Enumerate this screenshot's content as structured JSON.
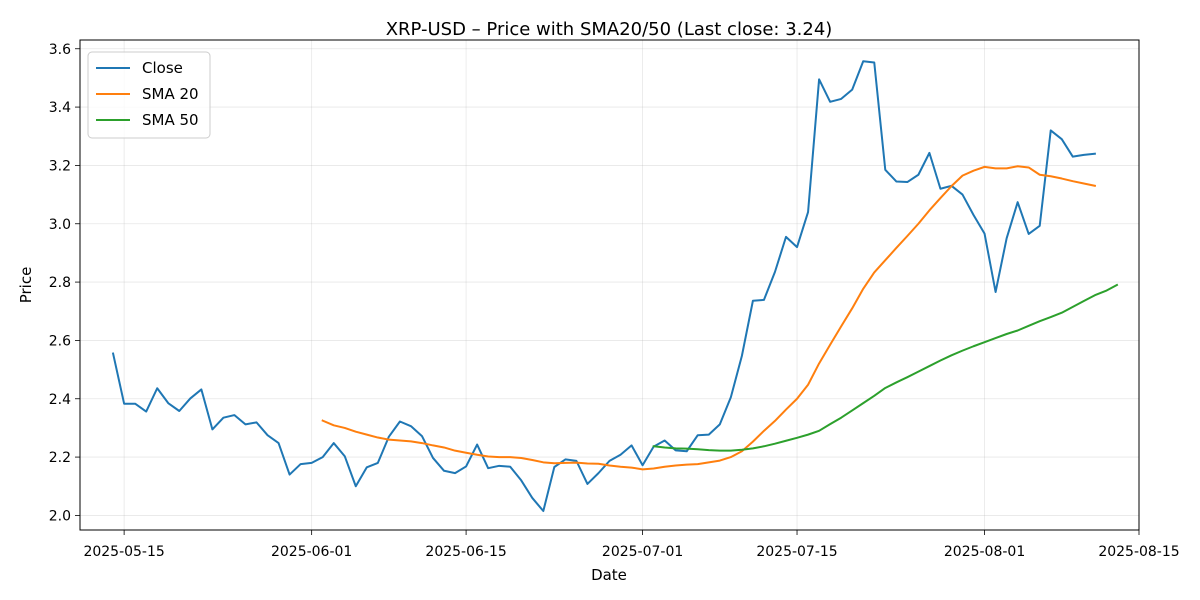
{
  "chart_data": {
    "type": "line",
    "title": "XRP-USD – Price with SMA20/50 (Last close: 3.24)",
    "xlabel": "Date",
    "ylabel": "Price",
    "xlim": [
      "2025-05-11",
      "2025-08-15"
    ],
    "ylim": [
      1.95,
      3.63
    ],
    "x_ticks": [
      "2025-05-15",
      "2025-06-01",
      "2025-06-15",
      "2025-07-01",
      "2025-07-15",
      "2025-08-01",
      "2025-08-15"
    ],
    "y_ticks": [
      "2.0",
      "2.2",
      "2.4",
      "2.6",
      "2.8",
      "3.0",
      "3.2",
      "3.4",
      "3.6"
    ],
    "grid": true,
    "legend_position": "top-left",
    "series": [
      {
        "name": "Close",
        "color": "#1f77b4",
        "start_date": "2025-05-14",
        "values": [
          2.555,
          2.383,
          2.383,
          2.356,
          2.436,
          2.385,
          2.358,
          2.401,
          2.432,
          2.295,
          2.335,
          2.344,
          2.312,
          2.319,
          2.275,
          2.248,
          2.14,
          2.176,
          2.18,
          2.2,
          2.248,
          2.203,
          2.1,
          2.165,
          2.18,
          2.27,
          2.322,
          2.306,
          2.272,
          2.197,
          2.153,
          2.145,
          2.168,
          2.243,
          2.162,
          2.17,
          2.167,
          2.12,
          2.06,
          2.015,
          2.166,
          2.192,
          2.187,
          2.108,
          2.145,
          2.187,
          2.208,
          2.24,
          2.172,
          2.236,
          2.257,
          2.223,
          2.22,
          2.275,
          2.277,
          2.312,
          2.405,
          2.547,
          2.736,
          2.739,
          2.835,
          2.955,
          2.92,
          3.04,
          3.495,
          3.418,
          3.428,
          3.46,
          3.557,
          3.553,
          3.185,
          3.145,
          3.143,
          3.168,
          3.243,
          3.12,
          3.13,
          3.1,
          3.03,
          2.966,
          2.766,
          2.95,
          3.074,
          2.965,
          2.993,
          3.32,
          3.29,
          3.23,
          3.236,
          3.24
        ]
      },
      {
        "name": "SMA 20",
        "color": "#ff7f0e",
        "start_date": "2025-06-02",
        "values": [
          2.325,
          2.309,
          2.3,
          2.287,
          2.277,
          2.267,
          2.26,
          2.257,
          2.254,
          2.248,
          2.24,
          2.233,
          2.222,
          2.215,
          2.208,
          2.202,
          2.2,
          2.2,
          2.197,
          2.19,
          2.182,
          2.179,
          2.18,
          2.181,
          2.178,
          2.177,
          2.171,
          2.167,
          2.164,
          2.158,
          2.161,
          2.167,
          2.171,
          2.174,
          2.176,
          2.182,
          2.188,
          2.2,
          2.22,
          2.253,
          2.29,
          2.324,
          2.363,
          2.4,
          2.448,
          2.521,
          2.585,
          2.648,
          2.71,
          2.777,
          2.833,
          2.875,
          2.917,
          2.958,
          3.0,
          3.046,
          3.088,
          3.129,
          3.165,
          3.182,
          3.195,
          3.19,
          3.19,
          3.197,
          3.193,
          3.168,
          3.163,
          3.155,
          3.146,
          3.138,
          3.13
        ]
      },
      {
        "name": "SMA 50",
        "color": "#2ca02c",
        "start_date": "2025-07-02",
        "values": [
          2.237,
          2.233,
          2.23,
          2.229,
          2.227,
          2.224,
          2.222,
          2.222,
          2.225,
          2.23,
          2.237,
          2.246,
          2.256,
          2.266,
          2.277,
          2.29,
          2.313,
          2.335,
          2.36,
          2.385,
          2.41,
          2.437,
          2.456,
          2.474,
          2.493,
          2.512,
          2.531,
          2.549,
          2.565,
          2.58,
          2.594,
          2.608,
          2.622,
          2.634,
          2.65,
          2.666,
          2.68,
          2.695,
          2.715,
          2.735,
          2.755,
          2.77,
          2.79
        ]
      }
    ]
  }
}
